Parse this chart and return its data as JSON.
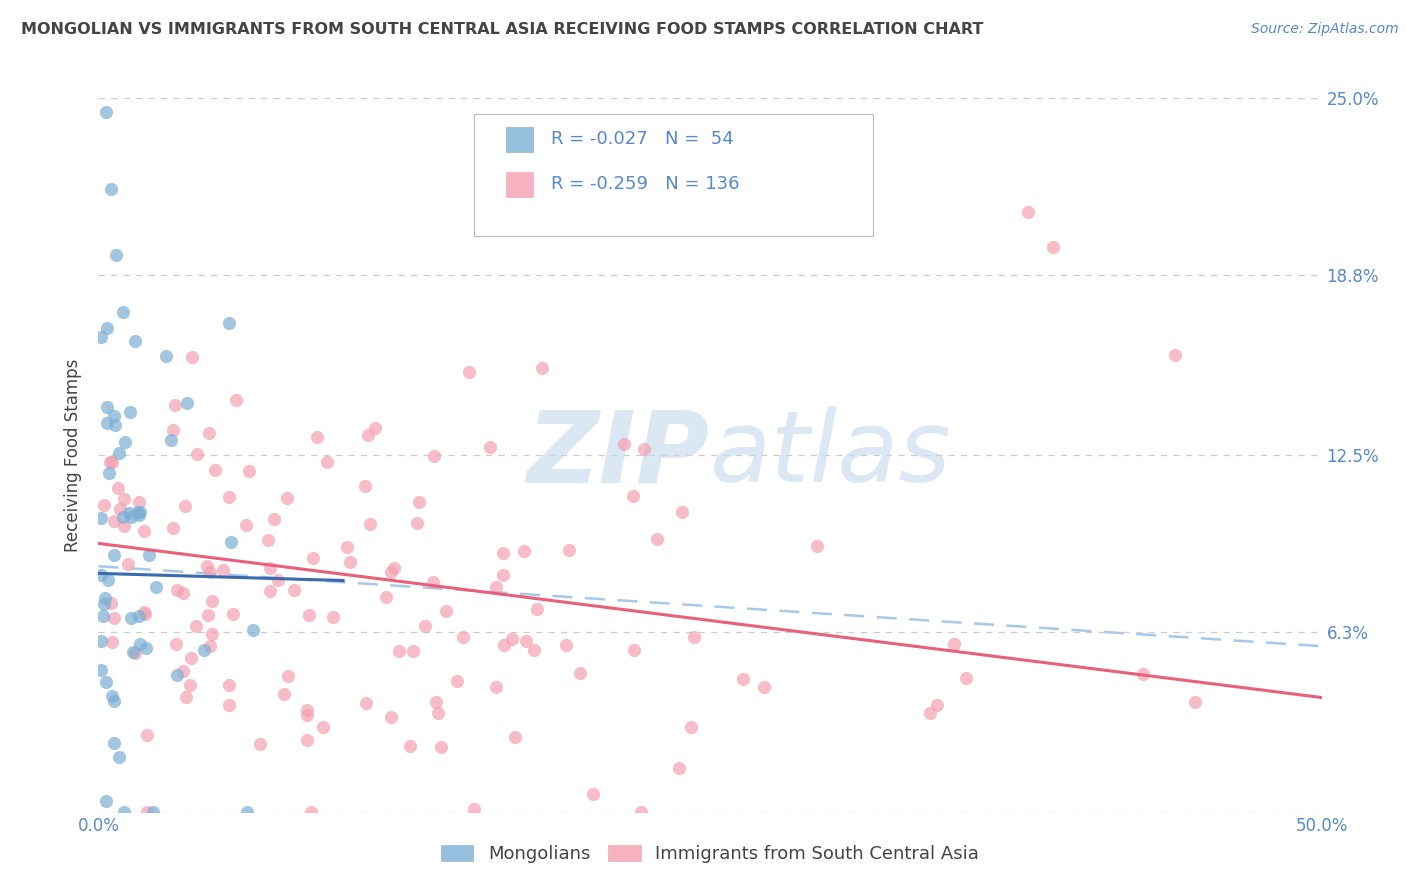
{
  "title": "MONGOLIAN VS IMMIGRANTS FROM SOUTH CENTRAL ASIA RECEIVING FOOD STAMPS CORRELATION CHART",
  "source": "Source: ZipAtlas.com",
  "ylabel_label": "Receiving Food Stamps",
  "legend_label1": "Mongolians",
  "legend_label2": "Immigrants from South Central Asia",
  "blue_color": "#7BAFD4",
  "pink_color": "#F4A0B0",
  "blue_line_color": "#3A6BAF",
  "pink_line_color": "#E8607A",
  "dashed_line_color": "#A8C8E8",
  "watermark_zip": "ZIP",
  "watermark_atlas": "atlas",
  "watermark_color_zip": "#C8DCF0",
  "watermark_color_atlas": "#C8DCF0",
  "background_color": "#FFFFFF",
  "grid_color": "#CCCCCC",
  "title_color": "#444444",
  "axis_label_color": "#444444",
  "tick_label_color": "#5588CC",
  "legend_text_color": "#5588CC",
  "R1": -0.027,
  "N1": 54,
  "R2": -0.259,
  "N2": 136,
  "seed": 42,
  "xlim": [
    0.0,
    0.5
  ],
  "ylim": [
    0.0,
    0.25
  ],
  "ytick_positions": [
    0.0,
    0.063,
    0.125,
    0.188,
    0.25
  ],
  "ytick_labels": [
    "",
    "6.3%",
    "12.5%",
    "18.8%",
    "25.0%"
  ],
  "xtick_positions": [
    0.0,
    0.1,
    0.2,
    0.3,
    0.4,
    0.5
  ],
  "xtick_labels": [
    "0.0%",
    "",
    "",
    "",
    "",
    "50.0%"
  ]
}
